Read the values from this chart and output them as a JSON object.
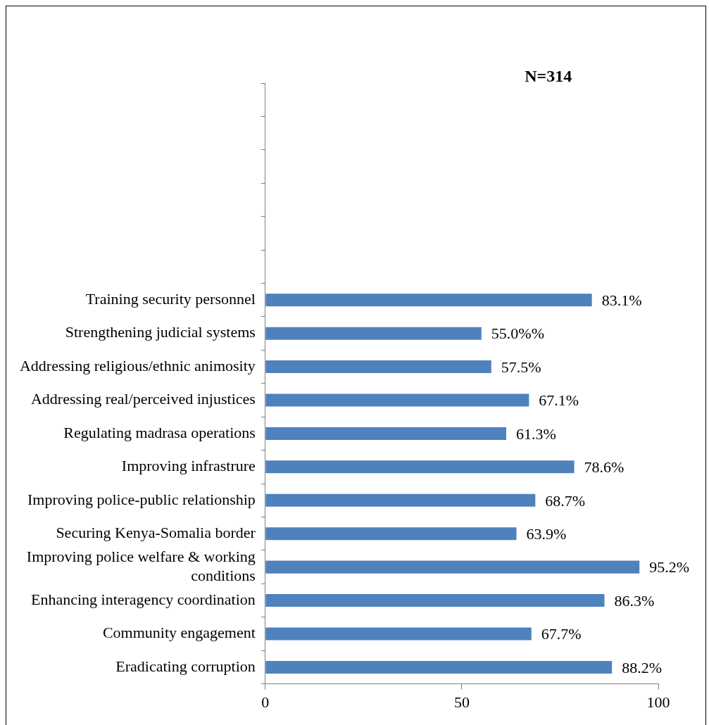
{
  "chart_data": {
    "type": "bar",
    "orientation": "horizontal",
    "title": "N=314",
    "categories": [
      null,
      null,
      null,
      null,
      null,
      null,
      "Training security personnel",
      "Strengthening judicial systems",
      "Addressing religious/ethnic animosity",
      "Addressing real/perceived injustices",
      "Regulating madrasa operations",
      "Improving infrastrure",
      "Improving police-public relationship",
      "Securing Kenya-Somalia border",
      "Improving police welfare & working conditions",
      "Enhancing interagency coordination",
      "Community engagement",
      "Eradicating corruption"
    ],
    "values": [
      null,
      null,
      null,
      null,
      null,
      null,
      83.1,
      55.0,
      57.5,
      67.1,
      61.3,
      78.6,
      68.7,
      63.9,
      95.2,
      86.3,
      67.7,
      88.2
    ],
    "value_labels": [
      null,
      null,
      null,
      null,
      null,
      null,
      "83.1%",
      "55.0%%",
      "57.5%",
      "67.1%",
      "61.3%",
      "78.6%",
      "68.7%",
      "63.9%",
      "95.2%",
      "86.3%",
      "67.7%",
      "88.2%"
    ],
    "color": "#4f81bd",
    "xlim": [
      0,
      100
    ],
    "xticks": [
      0,
      50,
      100
    ],
    "grid": false,
    "legend": false
  }
}
